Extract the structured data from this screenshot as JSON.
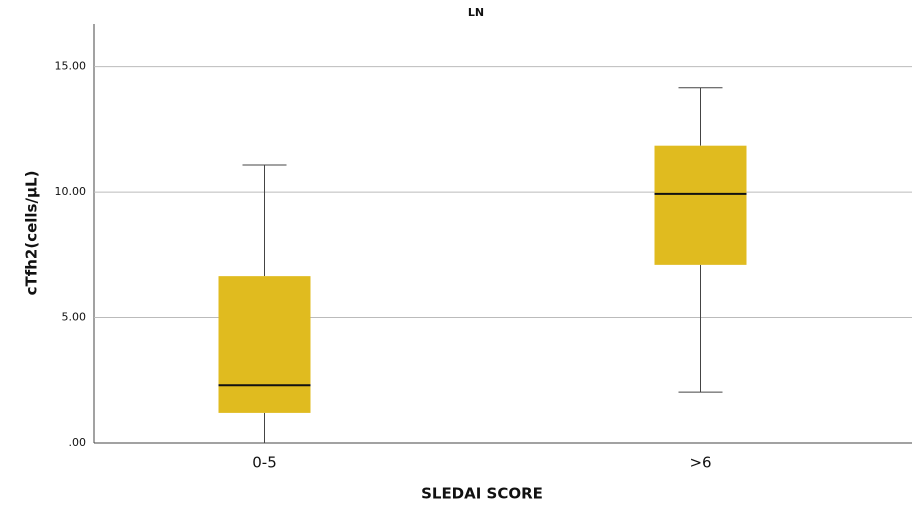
{
  "chart_data": {
    "type": "box",
    "title": "LN",
    "x_label": "SLEDAI SCORE",
    "y_label": "cTfh2(cells/μL)",
    "categories": [
      "0-5",
      ">6"
    ],
    "boxes": [
      {
        "min": 0,
        "q1": 1.2,
        "median": 2.3,
        "q3": 6.65,
        "max": 11.08
      },
      {
        "min": 2.03,
        "q1": 7.1,
        "median": 9.93,
        "q3": 11.85,
        "max": 14.16
      }
    ],
    "color": "#e0bb1f",
    "ylim": [
      0,
      16.7
    ],
    "yticks": [
      {
        "value": 0,
        "label": ".00"
      },
      {
        "value": 5,
        "label": "5.00"
      },
      {
        "value": 10,
        "label": "10.00"
      },
      {
        "value": 15,
        "label": "15.00"
      }
    ],
    "grid": true
  }
}
